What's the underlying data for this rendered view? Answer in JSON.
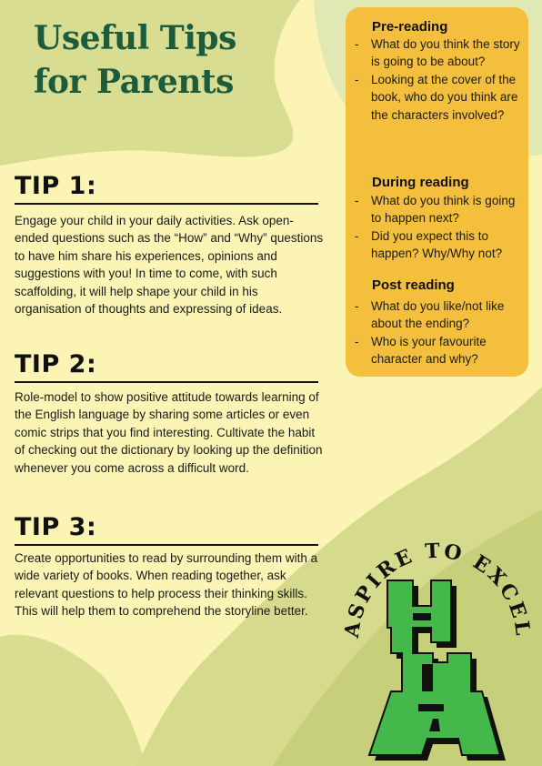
{
  "header": {
    "title_line1": "Useful Tips",
    "title_line2": "for Parents"
  },
  "tips": [
    {
      "heading": "TIP 1:",
      "body": "Engage your child in your daily activities. Ask open-ended questions such as the “How” and “Why” questions to have him share his experiences, opinions and suggestions with you! In time to come, with such scaffolding, it will help shape your child in his organisation of thoughts and expressing of ideas."
    },
    {
      "heading": "TIP 2:",
      "body": "Role-model to show positive attitude towards learning of the English language by sharing some articles or even comic strips that you find interesting.  Cultivate the habit of checking out the dictionary by looking up the definition whenever you come across a difficult word."
    },
    {
      "heading": "TIP 3:",
      "body": "Create opportunities to read by surrounding them with a wide variety of books. When reading together, ask relevant questions to help process their thinking skills. This will help them to comprehend the storyline better."
    }
  ],
  "reading_questions": {
    "pre": {
      "title": "Pre-reading",
      "items": [
        "What do you think the story is going to be about?",
        "Looking at the cover of the book, who do you think are the characters involved?"
      ]
    },
    "during": {
      "title": "During reading",
      "items": [
        "What do you think is going to happen next?",
        "Did you expect this to happen? Why/Why not?"
      ]
    },
    "post": {
      "title": "Post reading",
      "items": [
        "What do you like/not like about the ending?",
        "Who is your favourite character and why?"
      ]
    },
    "bullet": "-"
  },
  "logo": {
    "motto": "ASPIRE TO EXCEL"
  },
  "colors": {
    "background": "#fbf4b4",
    "panel": "#f4bf3c",
    "shape_light": "#d9dd92",
    "shape_mid": "#c8cf7a",
    "title_green": "#1d5b3d",
    "logo_green": "#45b84b"
  }
}
